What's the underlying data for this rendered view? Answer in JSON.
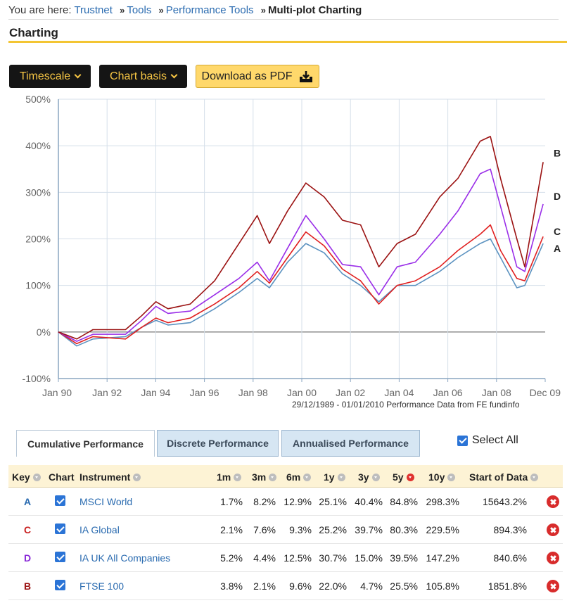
{
  "breadcrumb": {
    "prefix": "You are here:",
    "items": [
      "Trustnet",
      "Tools",
      "Performance Tools"
    ],
    "current": "Multi-plot Charting"
  },
  "page": {
    "title": "Charting"
  },
  "toolbar": {
    "timescale_label": "Timescale",
    "chart_basis_label": "Chart basis",
    "download_label": "Download as PDF"
  },
  "chart_data": {
    "type": "line",
    "yticks": [
      "500%",
      "400%",
      "300%",
      "200%",
      "100%",
      "0%",
      "-100%"
    ],
    "xticks": [
      "Jan 90",
      "Jan 92",
      "Jan 94",
      "Jan 96",
      "Jan 98",
      "Jan 00",
      "Jan 02",
      "Jan 04",
      "Jan 06",
      "Jan 08",
      "Dec 09"
    ],
    "ylim": [
      -100,
      500
    ],
    "xlim": [
      "1989-12-29",
      "2010-01-01"
    ],
    "grid": true,
    "colors": {
      "A": "#5b92c0",
      "C": "#e02020",
      "D": "#9a2ee8",
      "B": "#9b1212"
    },
    "series": [
      {
        "name": "A",
        "points": [
          [
            "1989-12-29",
            0
          ],
          [
            "1990-10-01",
            -30
          ],
          [
            "1991-06-01",
            -15
          ],
          [
            "1992-10-01",
            -10
          ],
          [
            "1993-06-01",
            10
          ],
          [
            "1994-01-01",
            25
          ],
          [
            "1994-07-01",
            15
          ],
          [
            "1995-06-01",
            20
          ],
          [
            "1996-06-01",
            50
          ],
          [
            "1997-06-01",
            85
          ],
          [
            "1998-03-01",
            115
          ],
          [
            "1998-09-01",
            95
          ],
          [
            "1999-06-01",
            150
          ],
          [
            "2000-03-01",
            190
          ],
          [
            "2000-12-01",
            170
          ],
          [
            "2001-09-01",
            125
          ],
          [
            "2002-06-01",
            100
          ],
          [
            "2003-03-01",
            65
          ],
          [
            "2003-12-01",
            100
          ],
          [
            "2004-09-01",
            100
          ],
          [
            "2005-09-01",
            130
          ],
          [
            "2006-06-01",
            160
          ],
          [
            "2007-05-01",
            190
          ],
          [
            "2007-10-01",
            200
          ],
          [
            "2008-03-01",
            160
          ],
          [
            "2008-11-01",
            95
          ],
          [
            "2009-03-01",
            100
          ],
          [
            "2009-12-01",
            190
          ]
        ]
      },
      {
        "name": "C",
        "points": [
          [
            "1989-12-29",
            0
          ],
          [
            "1990-10-01",
            -25
          ],
          [
            "1991-06-01",
            -10
          ],
          [
            "1992-10-01",
            -15
          ],
          [
            "1993-06-01",
            10
          ],
          [
            "1994-01-01",
            30
          ],
          [
            "1994-07-01",
            20
          ],
          [
            "1995-06-01",
            30
          ],
          [
            "1996-06-01",
            60
          ],
          [
            "1997-06-01",
            95
          ],
          [
            "1998-03-01",
            130
          ],
          [
            "1998-09-01",
            105
          ],
          [
            "1999-06-01",
            160
          ],
          [
            "2000-03-01",
            215
          ],
          [
            "2000-12-01",
            185
          ],
          [
            "2001-09-01",
            135
          ],
          [
            "2002-06-01",
            110
          ],
          [
            "2003-03-01",
            60
          ],
          [
            "2003-12-01",
            100
          ],
          [
            "2004-09-01",
            110
          ],
          [
            "2005-09-01",
            140
          ],
          [
            "2006-06-01",
            175
          ],
          [
            "2007-05-01",
            210
          ],
          [
            "2007-10-01",
            230
          ],
          [
            "2008-03-01",
            175
          ],
          [
            "2008-11-01",
            115
          ],
          [
            "2009-03-01",
            110
          ],
          [
            "2009-12-01",
            205
          ]
        ]
      },
      {
        "name": "D",
        "points": [
          [
            "1989-12-29",
            0
          ],
          [
            "1990-10-01",
            -20
          ],
          [
            "1991-06-01",
            -5
          ],
          [
            "1992-10-01",
            -5
          ],
          [
            "1993-06-01",
            25
          ],
          [
            "1994-01-01",
            55
          ],
          [
            "1994-07-01",
            40
          ],
          [
            "1995-06-01",
            45
          ],
          [
            "1996-06-01",
            80
          ],
          [
            "1997-06-01",
            115
          ],
          [
            "1998-03-01",
            150
          ],
          [
            "1998-09-01",
            110
          ],
          [
            "1999-06-01",
            180
          ],
          [
            "2000-03-01",
            250
          ],
          [
            "2000-12-01",
            200
          ],
          [
            "2001-09-01",
            145
          ],
          [
            "2002-06-01",
            140
          ],
          [
            "2003-03-01",
            80
          ],
          [
            "2003-12-01",
            140
          ],
          [
            "2004-09-01",
            150
          ],
          [
            "2005-09-01",
            210
          ],
          [
            "2006-06-01",
            260
          ],
          [
            "2007-05-01",
            340
          ],
          [
            "2007-10-01",
            350
          ],
          [
            "2008-03-01",
            270
          ],
          [
            "2008-11-01",
            140
          ],
          [
            "2009-03-01",
            130
          ],
          [
            "2009-12-01",
            275
          ]
        ]
      },
      {
        "name": "B",
        "points": [
          [
            "1989-12-29",
            0
          ],
          [
            "1990-10-01",
            -15
          ],
          [
            "1991-06-01",
            5
          ],
          [
            "1992-10-01",
            5
          ],
          [
            "1993-06-01",
            35
          ],
          [
            "1994-01-01",
            65
          ],
          [
            "1994-07-01",
            50
          ],
          [
            "1995-06-01",
            60
          ],
          [
            "1996-06-01",
            110
          ],
          [
            "1997-06-01",
            190
          ],
          [
            "1998-03-01",
            250
          ],
          [
            "1998-09-01",
            190
          ],
          [
            "1999-06-01",
            260
          ],
          [
            "2000-03-01",
            320
          ],
          [
            "2000-12-01",
            290
          ],
          [
            "2001-09-01",
            240
          ],
          [
            "2002-06-01",
            230
          ],
          [
            "2003-03-01",
            140
          ],
          [
            "2003-12-01",
            190
          ],
          [
            "2004-09-01",
            210
          ],
          [
            "2005-09-01",
            290
          ],
          [
            "2006-06-01",
            330
          ],
          [
            "2007-05-01",
            410
          ],
          [
            "2007-10-01",
            420
          ],
          [
            "2008-03-01",
            330
          ],
          [
            "2008-11-01",
            200
          ],
          [
            "2009-03-01",
            140
          ],
          [
            "2009-12-01",
            365
          ]
        ]
      }
    ]
  },
  "performance_note": "29/12/1989 - 01/01/2010 Performance Data from FE fundinfo",
  "tabs": [
    {
      "label": "Cumulative Performance"
    },
    {
      "label": "Discrete Performance"
    },
    {
      "label": "Annualised Performance"
    }
  ],
  "select_all_label": "Select All",
  "table": {
    "headers": {
      "key": "Key",
      "chart": "Chart",
      "instrument": "Instrument",
      "m1": "1m",
      "m3": "3m",
      "m6": "6m",
      "y1": "1y",
      "y3": "3y",
      "y5": "5y",
      "y10": "10y",
      "start": "Start of Data"
    },
    "rows": [
      {
        "key": "A",
        "key_color": "#2a6bb0",
        "instrument": "MSCI World",
        "m1": "1.7%",
        "m3": "8.2%",
        "m6": "12.9%",
        "y1": "25.1%",
        "y3": "40.4%",
        "y5": "84.8%",
        "y10": "298.3%",
        "start": "15643.2%"
      },
      {
        "key": "C",
        "key_color": "#c81e1e",
        "instrument": "IA Global",
        "m1": "2.1%",
        "m3": "7.6%",
        "m6": "9.3%",
        "y1": "25.2%",
        "y3": "39.7%",
        "y5": "80.3%",
        "y10": "229.5%",
        "start": "894.3%"
      },
      {
        "key": "D",
        "key_color": "#8a2ad8",
        "instrument": "IA UK All Companies",
        "m1": "5.2%",
        "m3": "4.4%",
        "m6": "12.5%",
        "y1": "30.7%",
        "y3": "15.0%",
        "y5": "39.5%",
        "y10": "147.2%",
        "start": "840.6%"
      },
      {
        "key": "B",
        "key_color": "#9b1212",
        "instrument": "FTSE 100",
        "m1": "3.8%",
        "m3": "2.1%",
        "m6": "9.6%",
        "y1": "22.0%",
        "y3": "4.7%",
        "y5": "25.5%",
        "y10": "105.8%",
        "start": "1851.8%"
      }
    ]
  }
}
